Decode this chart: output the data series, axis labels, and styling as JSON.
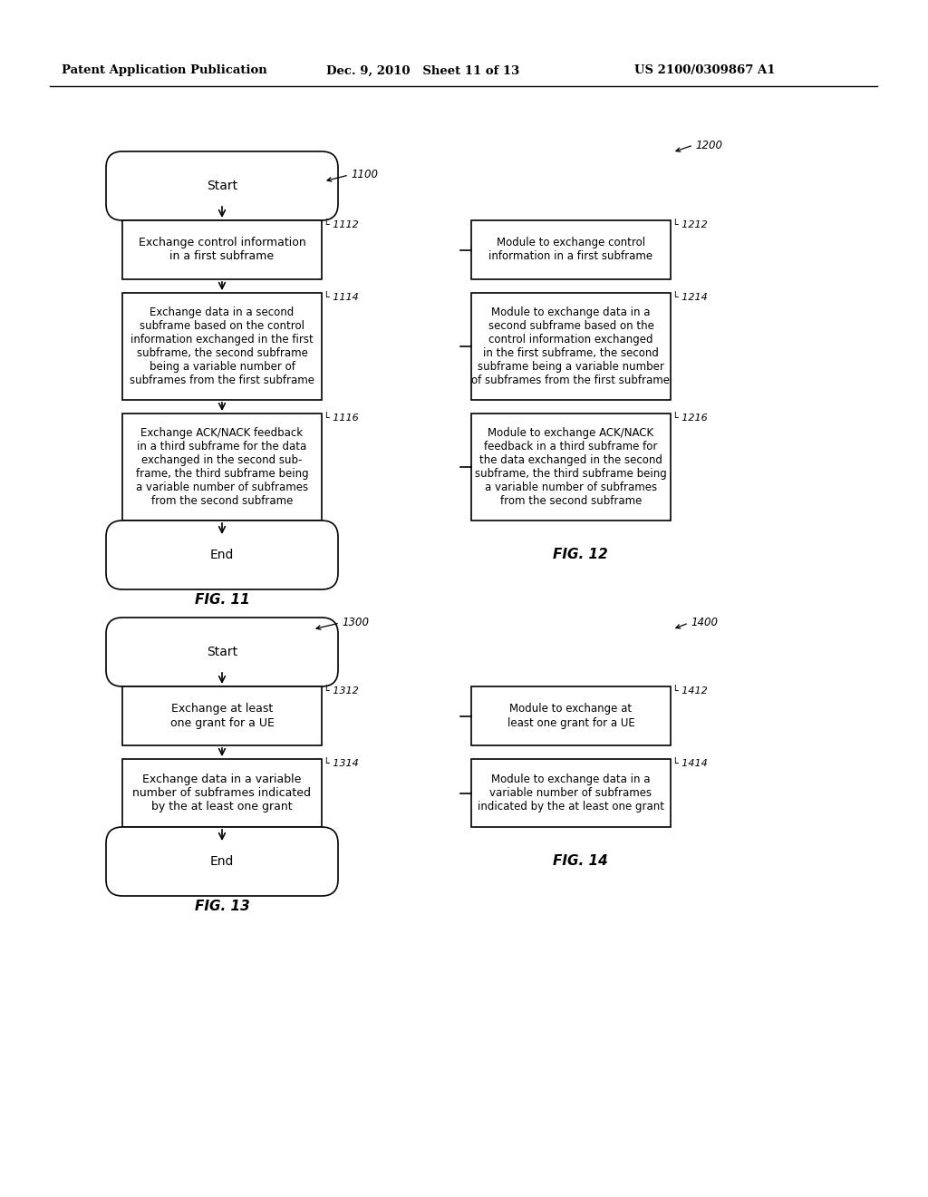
{
  "header_left": "Patent Application Publication",
  "header_mid": "Dec. 9, 2010   Sheet 11 of 13",
  "header_right": "US 2100/0309867 A1",
  "bg_color": "#ffffff",
  "fig11_label": "FIG. 11",
  "fig12_label": "FIG. 12",
  "fig13_label": "FIG. 13",
  "fig14_label": "FIG. 14",
  "ref1100": "1100",
  "ref1200": "1200",
  "ref1300": "1300",
  "ref1400": "1400",
  "box1112_text": "Exchange control information\nin a first subframe",
  "box1114_text": "Exchange data in a second\nsubframe based on the control\ninformation exchanged in the first\nsubframe, the second subframe\nbeing a variable number of\nsubframes from the first subframe",
  "box1116_text": "Exchange ACK/NACK feedback\nin a third subframe for the data\nexchanged in the second sub-\nframe, the third subframe being\na variable number of subframes\nfrom the second subframe",
  "box1212_text": "Module to exchange control\ninformation in a first subframe",
  "box1214_text": "Module to exchange data in a\nsecond subframe based on the\ncontrol information exchanged\nin the first subframe, the second\nsubframe being a variable number\nof subframes from the first subframe",
  "box1216_text": "Module to exchange ACK/NACK\nfeedback in a third subframe for\nthe data exchanged in the second\nsubframe, the third subframe being\na variable number of subframes\nfrom the second subframe",
  "box1312_text": "Exchange at least\none grant for a UE",
  "box1314_text": "Exchange data in a variable\nnumber of subframes indicated\nby the at least one grant",
  "box1412_text": "Module to exchange at\nleast one grant for a UE",
  "box1414_text": "Module to exchange data in a\nvariable number of subframes\nindicated by the at least one grant"
}
